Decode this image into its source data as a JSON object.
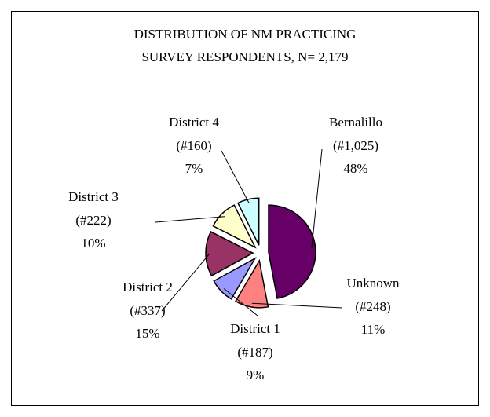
{
  "chart_data": {
    "type": "pie",
    "title": [
      "DISTRIBUTION OF  NM PRACTICING",
      "SURVEY RESPONDENTS, N= 2,179"
    ],
    "categories": [
      "Bernalillo",
      "Unknown",
      "District 1",
      "District 2",
      "District 3",
      "District 4"
    ],
    "values": [
      1025,
      248,
      187,
      337,
      222,
      160
    ],
    "value_labels": [
      "(#1,025)",
      "(#248)",
      "(#187)",
      "(#337)",
      "(#222)",
      "(#160)"
    ],
    "percents": [
      48,
      11,
      9,
      15,
      10,
      7
    ],
    "percent_labels": [
      "48%",
      "11%",
      "9%",
      "15%",
      "10%",
      "7%"
    ],
    "colors": [
      "#660066",
      "#ff8080",
      "#9999ff",
      "#993366",
      "#ffffcc",
      "#ccffff"
    ],
    "exploded": true
  }
}
